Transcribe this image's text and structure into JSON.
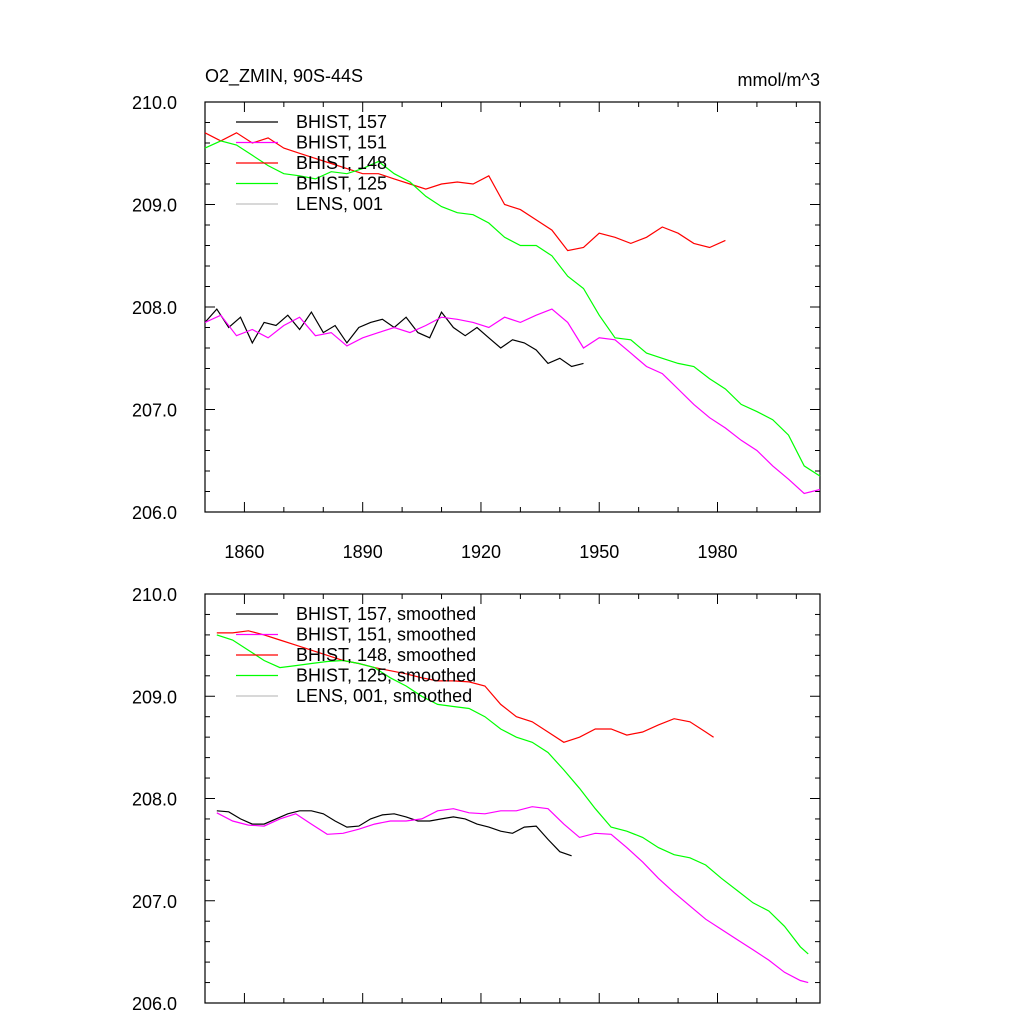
{
  "title": "O2_ZMIN, 90S-44S",
  "units": "mmol/m^3",
  "colors": {
    "black": "#000000",
    "magenta": "#ff00ff",
    "red": "#ff0000",
    "green": "#00ff00",
    "gray": "#c0c0c0"
  },
  "chart_data": [
    {
      "type": "line",
      "title": "O2_ZMIN, 90S-44S",
      "units": "mmol/m^3",
      "xlabel": "",
      "ylabel": "",
      "xlim": [
        1850,
        2006
      ],
      "ylim": [
        206.0,
        210.0
      ],
      "xticks": [
        1860,
        1890,
        1920,
        1950,
        1980
      ],
      "yticks": [
        "206.0",
        "207.0",
        "208.0",
        "209.0",
        "210.0"
      ],
      "grid": false,
      "legend_position": "top-left",
      "series": [
        {
          "name": "BHIST, 157",
          "color": "#000000",
          "x": [
            1850,
            1853,
            1856,
            1859,
            1862,
            1865,
            1868,
            1871,
            1874,
            1877,
            1880,
            1883,
            1886,
            1889,
            1892,
            1895,
            1898,
            1901,
            1904,
            1907,
            1910,
            1913,
            1916,
            1919,
            1922,
            1925,
            1928,
            1931,
            1934,
            1937,
            1940,
            1943,
            1946
          ],
          "y": [
            207.85,
            207.98,
            207.8,
            207.9,
            207.65,
            207.85,
            207.82,
            207.92,
            207.78,
            207.95,
            207.75,
            207.82,
            207.65,
            207.8,
            207.85,
            207.88,
            207.8,
            207.9,
            207.75,
            207.7,
            207.95,
            207.8,
            207.72,
            207.8,
            207.7,
            207.6,
            207.68,
            207.65,
            207.58,
            207.45,
            207.5,
            207.42,
            207.45
          ]
        },
        {
          "name": "BHIST, 151",
          "color": "#ff00ff",
          "x": [
            1850,
            1854,
            1858,
            1862,
            1866,
            1870,
            1874,
            1878,
            1882,
            1886,
            1890,
            1894,
            1898,
            1902,
            1906,
            1910,
            1914,
            1918,
            1922,
            1926,
            1930,
            1934,
            1938,
            1942,
            1946,
            1950,
            1954,
            1958,
            1962,
            1966,
            1970,
            1974,
            1978,
            1982,
            1986,
            1990,
            1994,
            1998,
            2002,
            2006
          ],
          "y": [
            207.85,
            207.92,
            207.72,
            207.78,
            207.7,
            207.82,
            207.9,
            207.72,
            207.75,
            207.62,
            207.7,
            207.75,
            207.8,
            207.75,
            207.82,
            207.9,
            207.88,
            207.85,
            207.8,
            207.9,
            207.85,
            207.92,
            207.98,
            207.85,
            207.6,
            207.7,
            207.68,
            207.55,
            207.42,
            207.35,
            207.2,
            207.05,
            206.92,
            206.82,
            206.7,
            206.6,
            206.45,
            206.32,
            206.18,
            206.22
          ]
        },
        {
          "name": "BHIST, 148",
          "color": "#ff0000",
          "x": [
            1850,
            1854,
            1858,
            1862,
            1866,
            1870,
            1874,
            1878,
            1882,
            1886,
            1890,
            1894,
            1898,
            1902,
            1906,
            1910,
            1914,
            1918,
            1922,
            1926,
            1930,
            1934,
            1938,
            1942,
            1946,
            1950,
            1954,
            1958,
            1962,
            1966,
            1970,
            1974,
            1978,
            1982
          ],
          "y": [
            209.7,
            209.62,
            209.7,
            209.6,
            209.65,
            209.55,
            209.5,
            209.45,
            209.4,
            209.35,
            209.3,
            209.3,
            209.25,
            209.2,
            209.15,
            209.2,
            209.22,
            209.2,
            209.28,
            209.0,
            208.95,
            208.85,
            208.75,
            208.55,
            208.58,
            208.72,
            208.68,
            208.62,
            208.68,
            208.78,
            208.72,
            208.62,
            208.58,
            208.65
          ]
        },
        {
          "name": "BHIST, 125",
          "color": "#00ff00",
          "x": [
            1850,
            1854,
            1858,
            1862,
            1866,
            1870,
            1874,
            1878,
            1882,
            1886,
            1890,
            1894,
            1898,
            1902,
            1906,
            1910,
            1914,
            1918,
            1922,
            1926,
            1930,
            1934,
            1938,
            1942,
            1946,
            1950,
            1954,
            1958,
            1962,
            1966,
            1970,
            1974,
            1978,
            1982,
            1986,
            1990,
            1994,
            1998,
            2002,
            2006
          ],
          "y": [
            209.55,
            209.62,
            209.58,
            209.48,
            209.38,
            209.3,
            209.28,
            209.25,
            209.32,
            209.3,
            209.35,
            209.42,
            209.3,
            209.22,
            209.08,
            208.98,
            208.92,
            208.9,
            208.82,
            208.68,
            208.6,
            208.6,
            208.5,
            208.3,
            208.18,
            207.92,
            207.7,
            207.68,
            207.55,
            207.5,
            207.45,
            207.42,
            207.3,
            207.2,
            207.05,
            206.98,
            206.9,
            206.75,
            206.45,
            206.35
          ]
        },
        {
          "name": "LENS, 001",
          "color": "#c0c0c0",
          "x": [],
          "y": []
        }
      ]
    },
    {
      "type": "line",
      "xlabel": "",
      "ylabel": "",
      "xlim": [
        1850,
        2006
      ],
      "ylim": [
        206.0,
        210.0
      ],
      "yticks": [
        "206.0",
        "207.0",
        "208.0",
        "209.0",
        "210.0"
      ],
      "grid": false,
      "legend_position": "top-left",
      "series": [
        {
          "name": "BHIST, 157, smoothed",
          "color": "#000000",
          "x": [
            1853,
            1856,
            1859,
            1862,
            1865,
            1868,
            1871,
            1874,
            1877,
            1880,
            1883,
            1886,
            1889,
            1892,
            1895,
            1898,
            1901,
            1904,
            1907,
            1910,
            1913,
            1916,
            1919,
            1922,
            1925,
            1928,
            1931,
            1934,
            1937,
            1940,
            1943
          ],
          "y": [
            207.88,
            207.87,
            207.8,
            207.75,
            207.75,
            207.8,
            207.85,
            207.88,
            207.88,
            207.85,
            207.78,
            207.72,
            207.73,
            207.8,
            207.84,
            207.85,
            207.82,
            207.78,
            207.78,
            207.8,
            207.82,
            207.8,
            207.75,
            207.72,
            207.68,
            207.66,
            207.72,
            207.73,
            207.6,
            207.48,
            207.44
          ]
        },
        {
          "name": "BHIST, 151, smoothed",
          "color": "#ff00ff",
          "x": [
            1853,
            1857,
            1861,
            1865,
            1869,
            1873,
            1877,
            1881,
            1885,
            1889,
            1893,
            1897,
            1901,
            1905,
            1909,
            1913,
            1917,
            1921,
            1925,
            1929,
            1933,
            1937,
            1941,
            1945,
            1949,
            1953,
            1957,
            1961,
            1965,
            1969,
            1973,
            1977,
            1981,
            1985,
            1989,
            1993,
            1997,
            2001,
            2003
          ],
          "y": [
            207.86,
            207.78,
            207.74,
            207.73,
            207.8,
            207.85,
            207.75,
            207.65,
            207.66,
            207.7,
            207.75,
            207.78,
            207.78,
            207.8,
            207.88,
            207.9,
            207.86,
            207.85,
            207.88,
            207.88,
            207.92,
            207.9,
            207.75,
            207.62,
            207.66,
            207.65,
            207.52,
            207.38,
            207.22,
            207.08,
            206.95,
            206.82,
            206.72,
            206.62,
            206.52,
            206.42,
            206.3,
            206.22,
            206.2
          ]
        },
        {
          "name": "BHIST, 148, smoothed",
          "color": "#ff0000",
          "x": [
            1853,
            1857,
            1861,
            1865,
            1869,
            1873,
            1877,
            1881,
            1885,
            1889,
            1893,
            1897,
            1901,
            1905,
            1909,
            1913,
            1917,
            1921,
            1925,
            1929,
            1933,
            1937,
            1941,
            1945,
            1949,
            1953,
            1957,
            1961,
            1965,
            1969,
            1973,
            1977,
            1979
          ],
          "y": [
            209.62,
            209.62,
            209.64,
            209.6,
            209.55,
            209.5,
            209.45,
            209.4,
            209.35,
            209.32,
            209.28,
            209.25,
            209.22,
            209.18,
            209.15,
            209.15,
            209.14,
            209.1,
            208.92,
            208.8,
            208.75,
            208.65,
            208.55,
            208.6,
            208.68,
            208.68,
            208.62,
            208.65,
            208.72,
            208.78,
            208.75,
            208.65,
            208.6
          ]
        },
        {
          "name": "BHIST, 125, smoothed",
          "color": "#00ff00",
          "x": [
            1853,
            1857,
            1861,
            1865,
            1869,
            1873,
            1877,
            1881,
            1885,
            1889,
            1893,
            1897,
            1901,
            1905,
            1909,
            1913,
            1917,
            1921,
            1925,
            1929,
            1933,
            1937,
            1941,
            1945,
            1949,
            1953,
            1957,
            1961,
            1965,
            1969,
            1973,
            1977,
            1981,
            1985,
            1989,
            1993,
            1997,
            2001,
            2003
          ],
          "y": [
            209.6,
            209.55,
            209.45,
            209.35,
            209.28,
            209.3,
            209.32,
            209.34,
            209.35,
            209.32,
            209.28,
            209.18,
            209.1,
            209.0,
            208.92,
            208.9,
            208.88,
            208.8,
            208.68,
            208.6,
            208.55,
            208.45,
            208.28,
            208.1,
            207.9,
            207.72,
            207.68,
            207.62,
            207.52,
            207.45,
            207.42,
            207.35,
            207.22,
            207.1,
            206.98,
            206.9,
            206.75,
            206.55,
            206.48
          ]
        },
        {
          "name": "LENS, 001, smoothed",
          "color": "#c0c0c0",
          "x": [],
          "y": []
        }
      ]
    }
  ]
}
